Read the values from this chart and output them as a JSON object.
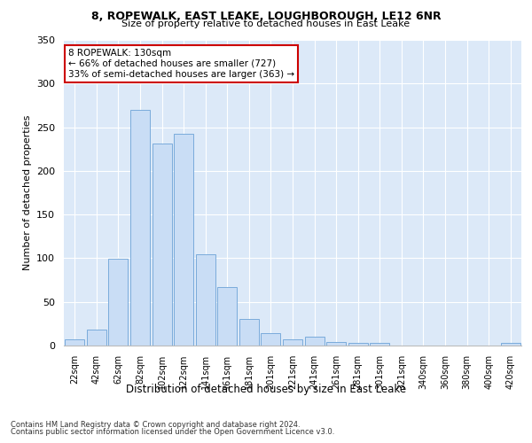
{
  "title1": "8, ROPEWALK, EAST LEAKE, LOUGHBOROUGH, LE12 6NR",
  "title2": "Size of property relative to detached houses in East Leake",
  "xlabel": "Distribution of detached houses by size in East Leake",
  "ylabel": "Number of detached properties",
  "categories": [
    "22sqm",
    "42sqm",
    "62sqm",
    "82sqm",
    "102sqm",
    "122sqm",
    "141sqm",
    "161sqm",
    "181sqm",
    "201sqm",
    "221sqm",
    "241sqm",
    "261sqm",
    "281sqm",
    "301sqm",
    "321sqm",
    "340sqm",
    "360sqm",
    "380sqm",
    "400sqm",
    "420sqm"
  ],
  "values": [
    7,
    18,
    99,
    270,
    231,
    242,
    105,
    67,
    30,
    14,
    7,
    10,
    4,
    3,
    3,
    0,
    0,
    0,
    0,
    0,
    3
  ],
  "bar_color": "#c9ddf5",
  "bar_edge_color": "#7aabdb",
  "background_color": "#dce9f8",
  "grid_color": "#ffffff",
  "annotation_text": "8 ROPEWALK: 130sqm\n← 66% of detached houses are smaller (727)\n33% of semi-detached houses are larger (363) →",
  "annotation_box_color": "#ffffff",
  "annotation_box_edge_color": "#cc0000",
  "ylim": [
    0,
    350
  ],
  "yticks": [
    0,
    50,
    100,
    150,
    200,
    250,
    300,
    350
  ],
  "footnote1": "Contains HM Land Registry data © Crown copyright and database right 2024.",
  "footnote2": "Contains public sector information licensed under the Open Government Licence v3.0."
}
